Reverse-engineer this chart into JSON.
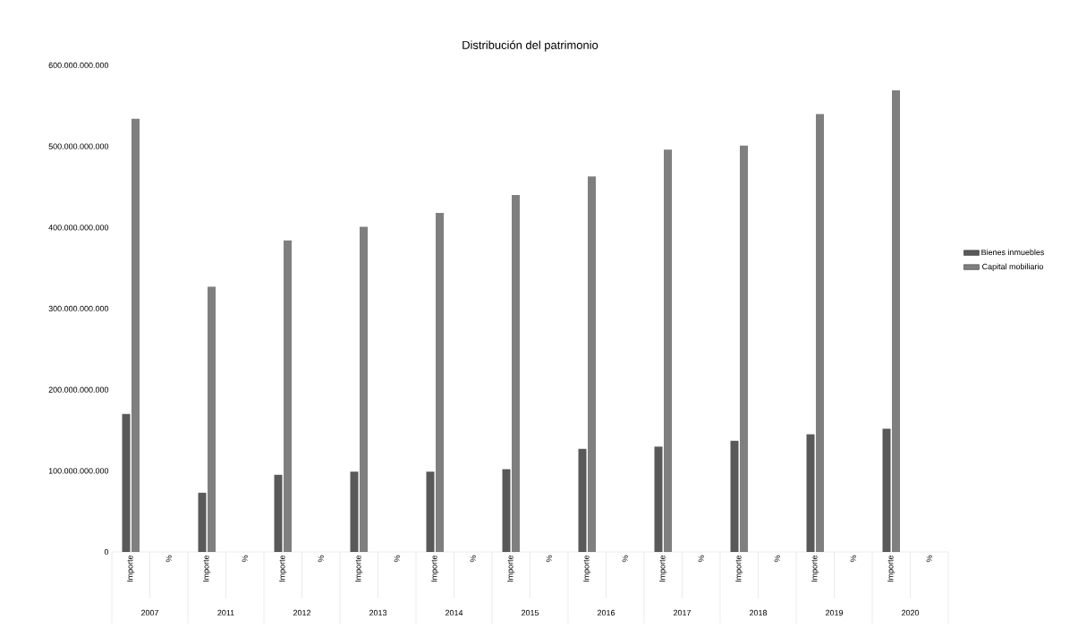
{
  "chart_data": {
    "type": "bar",
    "title": "Distribución del patrimonio",
    "categories": [
      "Importe",
      "%",
      "Importe",
      "%",
      "Importe",
      "%",
      "Importe",
      "%",
      "Importe",
      "%",
      "Importe",
      "%",
      "Importe",
      "%",
      "Importe",
      "%",
      "Importe",
      "%",
      "Importe",
      "%",
      "Importe",
      "%"
    ],
    "annotations": [
      "2007",
      "2011",
      "2012",
      "2013",
      "2014",
      "2015",
      "2016",
      "2017",
      "2018",
      "2019",
      "2020"
    ],
    "series": [
      {
        "name": "Bienes inmuebles",
        "color": "#595959",
        "values": [
          170000000000,
          null,
          73000000000,
          null,
          95000000000,
          null,
          99000000000,
          null,
          99000000000,
          null,
          102000000000,
          null,
          127000000000,
          null,
          130000000000,
          null,
          137000000000,
          null,
          145000000000,
          null,
          152000000000,
          null
        ]
      },
      {
        "name": "Capital mobiliario",
        "color": "#7f7f7f",
        "values": [
          534000000000,
          null,
          327000000000,
          null,
          384000000000,
          null,
          401000000000,
          null,
          418000000000,
          null,
          440000000000,
          null,
          463000000000,
          null,
          496000000000,
          null,
          501000000000,
          null,
          540000000000,
          null,
          569000000000,
          null
        ]
      }
    ],
    "ylim": [
      0,
      600000000000
    ],
    "yticks": [
      0,
      {
        "value": 100000000000,
        "label": "100.000.000.000"
      },
      {
        "value": 200000000000,
        "label": "200.000.000.000"
      },
      {
        "value": 300000000000,
        "label": "300.000.000.000"
      },
      {
        "value": 400000000000,
        "label": "400.000.000.000"
      },
      {
        "value": 500000000000,
        "label": "500.000.000.000"
      },
      {
        "value": 600000000000,
        "label": "600.000.000.000"
      }
    ],
    "grid": false,
    "legend": "right"
  }
}
